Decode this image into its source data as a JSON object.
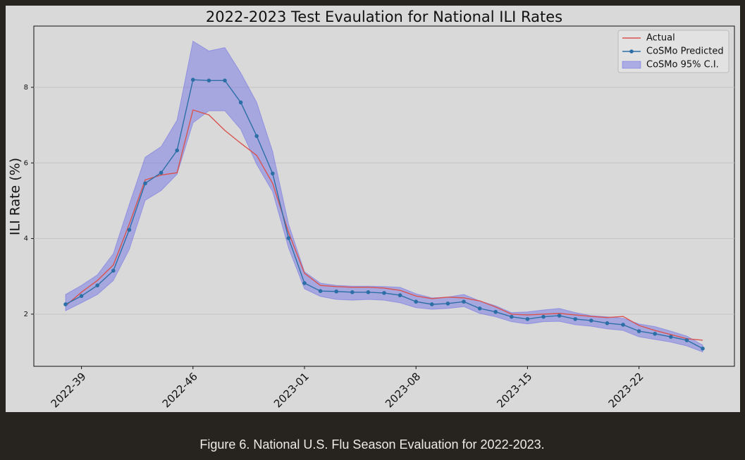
{
  "caption": "Figure 6. National U.S. Flu Season Evaluation for 2022-2023.",
  "chart_data": {
    "type": "line",
    "title": "2022-2023 Test Evaulation for National ILI Rates",
    "y_label": "ILI Rate (%)",
    "categories": [
      null,
      "2022-39",
      null,
      null,
      null,
      null,
      null,
      null,
      "2022-46",
      null,
      null,
      null,
      null,
      null,
      null,
      "2023-01",
      null,
      null,
      null,
      null,
      null,
      null,
      "2023-08",
      null,
      null,
      null,
      null,
      null,
      null,
      "2023-15",
      null,
      null,
      null,
      null,
      null,
      null,
      "2023-22",
      null,
      null,
      null,
      null
    ],
    "ylim": [
      0.62,
      9.62
    ],
    "yticks": [
      2,
      4,
      6,
      8
    ],
    "grid": true,
    "legend": "upper right",
    "series": [
      {
        "name": "Actual",
        "color": "#d9534f",
        "markers": false,
        "values": [
          2.22,
          2.58,
          2.89,
          3.3,
          4.38,
          5.55,
          5.68,
          5.74,
          7.4,
          7.27,
          6.86,
          6.52,
          6.2,
          5.46,
          4.16,
          3.08,
          2.76,
          2.73,
          2.71,
          2.71,
          2.69,
          2.63,
          2.48,
          2.41,
          2.45,
          2.43,
          2.35,
          2.19,
          2.0,
          1.98,
          2.0,
          2.02,
          1.98,
          1.94,
          1.91,
          1.94,
          1.7,
          1.57,
          1.46,
          1.35,
          1.31
        ]
      },
      {
        "name": "CoSMo Predicted",
        "color": "#2c6fa6",
        "markers": true,
        "values": [
          2.26,
          2.48,
          2.76,
          3.15,
          4.23,
          5.46,
          5.74,
          6.33,
          8.2,
          8.18,
          8.18,
          7.6,
          6.71,
          5.72,
          4.01,
          2.82,
          2.61,
          2.6,
          2.58,
          2.58,
          2.56,
          2.5,
          2.33,
          2.26,
          2.28,
          2.33,
          2.15,
          2.06,
          1.93,
          1.87,
          1.93,
          1.96,
          1.87,
          1.83,
          1.76,
          1.72,
          1.55,
          1.48,
          1.4,
          1.31,
          1.09
        ]
      }
    ],
    "band": {
      "name": "CoSMo 95% C.I.",
      "color": "#6a6ae6",
      "upper": [
        2.52,
        2.76,
        3.04,
        3.6,
        4.9,
        6.15,
        6.43,
        7.13,
        9.22,
        8.96,
        9.05,
        8.38,
        7.6,
        6.3,
        4.38,
        3.12,
        2.82,
        2.76,
        2.74,
        2.74,
        2.73,
        2.71,
        2.54,
        2.43,
        2.45,
        2.52,
        2.35,
        2.22,
        2.04,
        2.06,
        2.11,
        2.15,
        2.04,
        1.96,
        1.93,
        1.89,
        1.74,
        1.67,
        1.55,
        1.42,
        1.18
      ],
      "lower": [
        2.09,
        2.3,
        2.52,
        2.89,
        3.71,
        5.01,
        5.27,
        5.7,
        7.06,
        7.38,
        7.38,
        6.89,
        5.96,
        5.24,
        3.75,
        2.67,
        2.47,
        2.39,
        2.37,
        2.39,
        2.37,
        2.3,
        2.17,
        2.13,
        2.15,
        2.2,
        2.02,
        1.93,
        1.8,
        1.74,
        1.8,
        1.81,
        1.72,
        1.68,
        1.61,
        1.57,
        1.4,
        1.33,
        1.26,
        1.16,
        1.0
      ]
    }
  }
}
